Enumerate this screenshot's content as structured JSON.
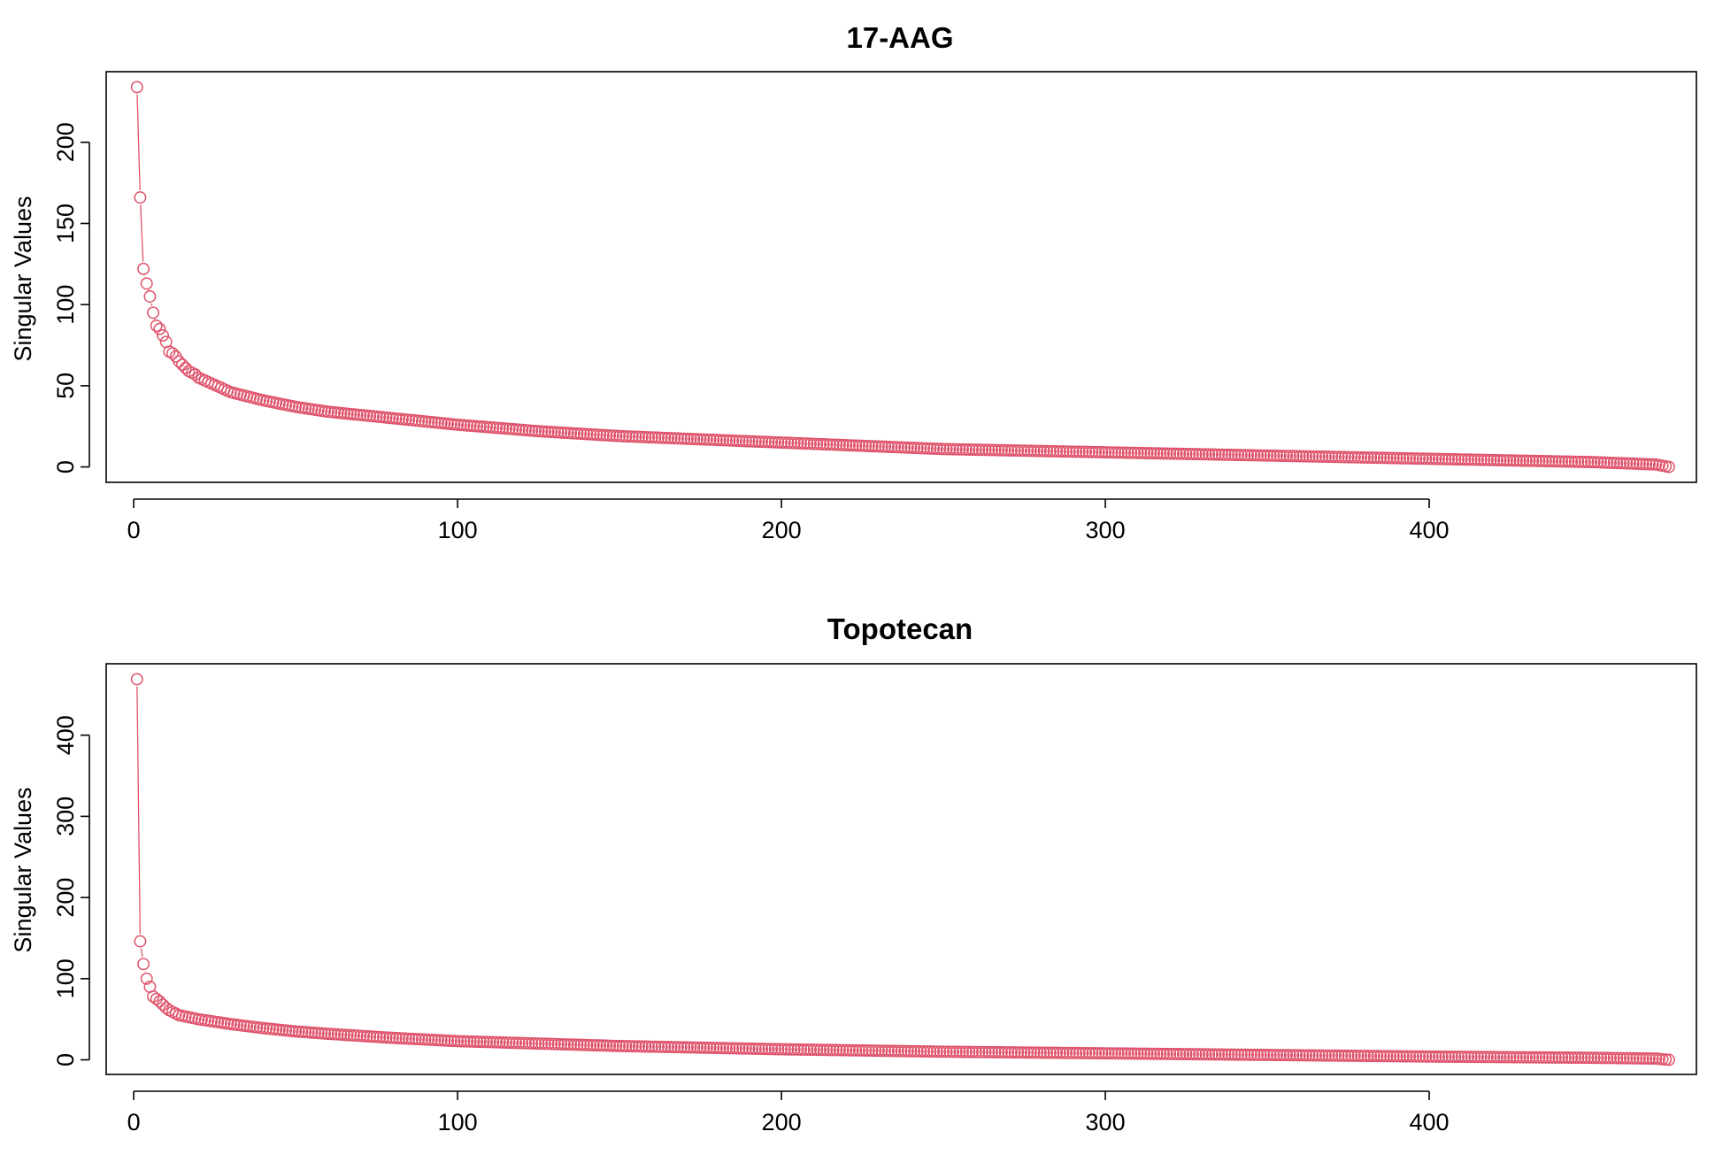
{
  "colors": {
    "series": "#DF536B",
    "axis": "#000000",
    "background": "#FFFFFF"
  },
  "chart_data": [
    {
      "type": "scatter",
      "title": "17-AAG",
      "xlabel": "",
      "ylabel": "Singular Values",
      "xlim": [
        -8.5,
        482.5
      ],
      "ylim": [
        -9.5,
        243.5
      ],
      "xticks": [
        0,
        100,
        200,
        300,
        400
      ],
      "yticks": [
        0,
        50,
        100,
        150,
        200
      ],
      "grid": false,
      "legend": "none",
      "marker": "open-circle",
      "n_points": 474,
      "head_values": [
        234,
        166,
        122,
        113,
        105,
        95,
        87,
        85,
        81,
        77,
        71,
        70,
        68,
        65,
        63,
        61,
        59,
        58,
        57,
        55
      ],
      "tail_x": [
        20,
        30,
        40,
        50,
        60,
        80,
        100,
        125,
        150,
        175,
        200,
        250,
        300,
        350,
        400,
        450,
        470,
        474
      ],
      "tail_y": [
        55,
        46,
        41,
        37,
        34,
        30,
        26,
        22,
        19,
        17,
        15,
        11,
        9,
        7,
        5,
        3,
        1.5,
        0
      ]
    },
    {
      "type": "scatter",
      "title": "Topotecan",
      "xlabel": "",
      "ylabel": "Singular Values",
      "xlim": [
        -8.5,
        482.5
      ],
      "ylim": [
        -18,
        488
      ],
      "xticks": [
        0,
        100,
        200,
        300,
        400
      ],
      "yticks": [
        0,
        100,
        200,
        300,
        400
      ],
      "grid": false,
      "legend": "none",
      "marker": "open-circle",
      "n_points": 474,
      "head_values": [
        469,
        146,
        118,
        100,
        90,
        78,
        75,
        72,
        68,
        64,
        61,
        59,
        57,
        55
      ],
      "tail_x": [
        14,
        20,
        30,
        40,
        50,
        60,
        80,
        100,
        125,
        150,
        175,
        200,
        250,
        300,
        350,
        400,
        450,
        470,
        474
      ],
      "tail_y": [
        55,
        50,
        44,
        39,
        35,
        32,
        27,
        23,
        20,
        17,
        15,
        13,
        10,
        8,
        6,
        4,
        2.5,
        1.5,
        0
      ]
    }
  ]
}
